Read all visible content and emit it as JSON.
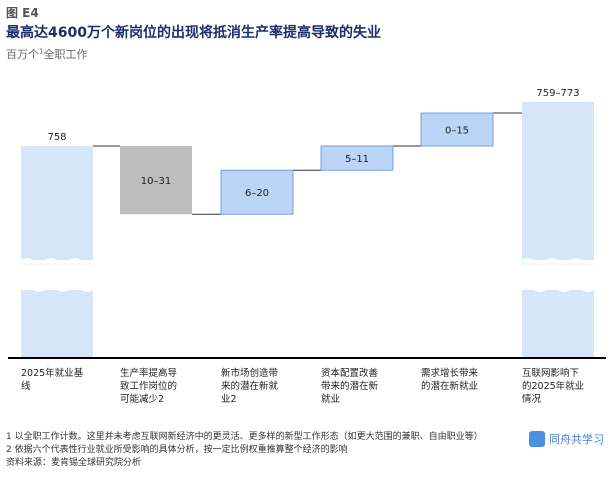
{
  "figure_label": "图 E4",
  "title": "最高达4600万个新岗位的出现将抵消生产率提高导致的失业",
  "subtitle_pre": "百万个",
  "subtitle_sup": "1",
  "subtitle_post": "全职工作",
  "chart_data": {
    "type": "bar",
    "subtype": "waterfall",
    "categories": [
      "2025年就业基线",
      "生产率提高导致工作岗位的可能减少2",
      "新市场创造带来的潜在新就业2",
      "资本配置改善带来的潜在新就业",
      "需求增长带来的潜在新就业",
      "互联网影响下的2025年就业情况"
    ],
    "category_lines": [
      [
        "2025年就业基",
        "线"
      ],
      [
        "生产率提高导",
        "致工作岗位的",
        "可能减少2"
      ],
      [
        "新市场创造带",
        "来的潜在新就",
        "业2"
      ],
      [
        "资本配置改善",
        "带来的潜在新",
        "就业"
      ],
      [
        "需求增长带来",
        "的潜在新就业"
      ],
      [
        "互联网影响下",
        "的2025年就业",
        "情况"
      ]
    ],
    "values": [
      {
        "label": "758",
        "low": 758,
        "high": 758,
        "kind": "total"
      },
      {
        "label": "10–31",
        "low": 10,
        "high": 31,
        "kind": "decrease"
      },
      {
        "label": "6–20",
        "low": 6,
        "high": 20,
        "kind": "increase"
      },
      {
        "label": "5–11",
        "low": 5,
        "high": 11,
        "kind": "increase"
      },
      {
        "label": "0–15",
        "low": 0,
        "high": 15,
        "kind": "increase"
      },
      {
        "label": "759–773",
        "low": 759,
        "high": 773,
        "kind": "total"
      }
    ],
    "axis_broken": true,
    "colors": {
      "total": "#d5e6f8",
      "decrease": "#bdbdbd",
      "increase": "#bcd4f6",
      "increase_border": "#5b8fe0",
      "connector": "#333333",
      "baseline": "#000000"
    }
  },
  "footnotes": [
    "1 以全职工作计数。这里并未考虑互联网新经济中的更灵活、更多样的新型工作形态（如更大范围的兼职、自由职业等）",
    "2 依据六个代表性行业就业所受影响的具体分析，按一定比例权重推算整个经济的影响",
    "资料来源：麦肯锡全球研究院分析"
  ],
  "watermark": "同舟共学习"
}
